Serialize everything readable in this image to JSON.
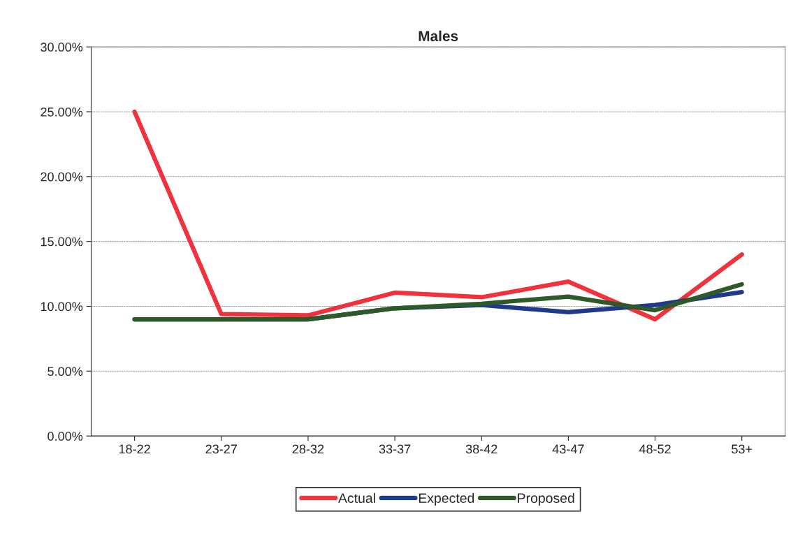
{
  "chart_data": {
    "type": "line",
    "title": "Males",
    "categories": [
      "18-22",
      "23-27",
      "28-32",
      "33-37",
      "38-42",
      "43-47",
      "48-52",
      "53+"
    ],
    "series": [
      {
        "name": "Actual",
        "color": "#f0323c",
        "values": [
          25.0,
          9.4,
          9.3,
          11.05,
          10.7,
          11.9,
          9.0,
          14.0
        ]
      },
      {
        "name": "Expected",
        "color": "#1f3a8c",
        "values": [
          9.0,
          9.0,
          9.0,
          9.85,
          10.1,
          9.55,
          10.1,
          11.1
        ]
      },
      {
        "name": "Proposed",
        "color": "#2e5a2a",
        "values": [
          9.0,
          9.0,
          9.0,
          9.85,
          10.2,
          10.75,
          9.7,
          11.7
        ]
      }
    ],
    "ylim": [
      0,
      30
    ],
    "yticks": [
      {
        "value": 0,
        "label": "0.00%"
      },
      {
        "value": 5,
        "label": "5.00%"
      },
      {
        "value": 10,
        "label": "10.00%"
      },
      {
        "value": 15,
        "label": "15.00%"
      },
      {
        "value": 20,
        "label": "20.00%"
      },
      {
        "value": 25,
        "label": "25.00%"
      },
      {
        "value": 30,
        "label": "30.00%"
      }
    ],
    "grid": "y",
    "legend": "bottom",
    "marker": "none",
    "line_style": "solid"
  }
}
